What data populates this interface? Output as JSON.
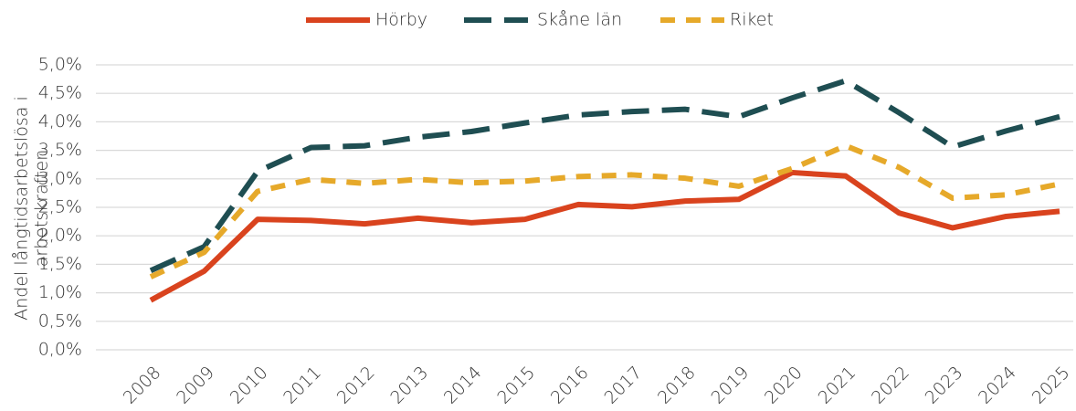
{
  "chart_data": {
    "type": "line",
    "ylabel": [
      "Andel långtidsarbetslösa i",
      "arbetskraften"
    ],
    "categories": [
      "2008",
      "2009",
      "2010",
      "2011",
      "2012",
      "2013",
      "2014",
      "2015",
      "2016",
      "2017",
      "2018",
      "2019",
      "2020",
      "2021",
      "2022",
      "2023",
      "2024",
      "2025"
    ],
    "series": [
      {
        "name": "Hörby",
        "color": "#d9431e",
        "linestyle": "solid",
        "values": [
          0.87,
          1.38,
          2.29,
          2.27,
          2.21,
          2.31,
          2.23,
          2.29,
          2.55,
          2.51,
          2.61,
          2.64,
          3.11,
          3.05,
          2.4,
          2.14,
          2.34,
          2.43
        ]
      },
      {
        "name": "Skåne län",
        "color": "#1f4e52",
        "linestyle": "long-dash",
        "values": [
          1.39,
          1.81,
          3.13,
          3.55,
          3.58,
          3.73,
          3.83,
          3.98,
          4.12,
          4.18,
          4.22,
          4.09,
          4.42,
          4.72,
          4.16,
          3.56,
          3.84,
          4.09
        ]
      },
      {
        "name": "Riket",
        "color": "#e6a92a",
        "linestyle": "dash",
        "values": [
          1.28,
          1.71,
          2.78,
          2.99,
          2.92,
          2.99,
          2.93,
          2.96,
          3.04,
          3.07,
          3.01,
          2.87,
          3.18,
          3.58,
          3.2,
          2.66,
          2.72,
          2.91
        ]
      }
    ],
    "ylim": [
      0,
      5
    ],
    "yticks": [
      {
        "value": 0,
        "label": "0,0%"
      },
      {
        "value": 0.5,
        "label": "0,5%"
      },
      {
        "value": 1,
        "label": "1,0%"
      },
      {
        "value": 1.5,
        "label": "1,5%"
      },
      {
        "value": 2,
        "label": "2,0%"
      },
      {
        "value": 2.5,
        "label": "2,5%"
      },
      {
        "value": 3,
        "label": "3,0%"
      },
      {
        "value": 3.5,
        "label": "3,5%"
      },
      {
        "value": 4,
        "label": "4,0%"
      },
      {
        "value": 4.5,
        "label": "4,5%"
      },
      {
        "value": 5,
        "label": "5,0%"
      }
    ],
    "grid": true,
    "legend": "top"
  }
}
